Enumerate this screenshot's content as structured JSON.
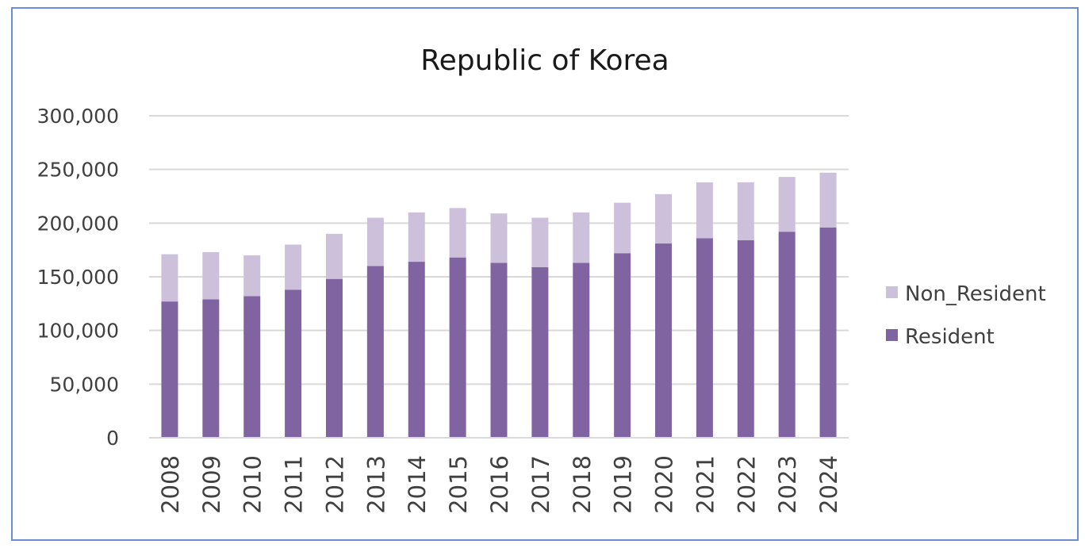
{
  "chart_data": {
    "type": "bar",
    "stacked": true,
    "title": "Republic of Korea",
    "xlabel": "",
    "ylabel": "",
    "ylim": [
      0,
      300000
    ],
    "yticks": [
      "0",
      "50,000",
      "100,000",
      "150,000",
      "200,000",
      "250,000",
      "300,000"
    ],
    "ytick_values": [
      0,
      50000,
      100000,
      150000,
      200000,
      250000,
      300000
    ],
    "grid": true,
    "legend_position": "right",
    "categories": [
      "2008",
      "2009",
      "2010",
      "2011",
      "2012",
      "2013",
      "2014",
      "2015",
      "2016",
      "2017",
      "2018",
      "2019",
      "2020",
      "2021",
      "2022",
      "2023",
      "2024"
    ],
    "series": [
      {
        "name": "Resident",
        "color": "#8064a2",
        "values": [
          127000,
          129000,
          132000,
          138000,
          148000,
          160000,
          164000,
          168000,
          163000,
          159000,
          163000,
          172000,
          181000,
          186000,
          184000,
          192000,
          196000
        ]
      },
      {
        "name": "Non_Resident",
        "color": "#ccc0da",
        "values": [
          44000,
          44000,
          38000,
          42000,
          42000,
          45000,
          46000,
          46000,
          46000,
          46000,
          47000,
          47000,
          46000,
          52000,
          54000,
          51000,
          51000
        ]
      }
    ],
    "legend": [
      {
        "name": "Non_Resident",
        "color": "#ccc0da"
      },
      {
        "name": "Resident",
        "color": "#8064a2"
      }
    ]
  }
}
